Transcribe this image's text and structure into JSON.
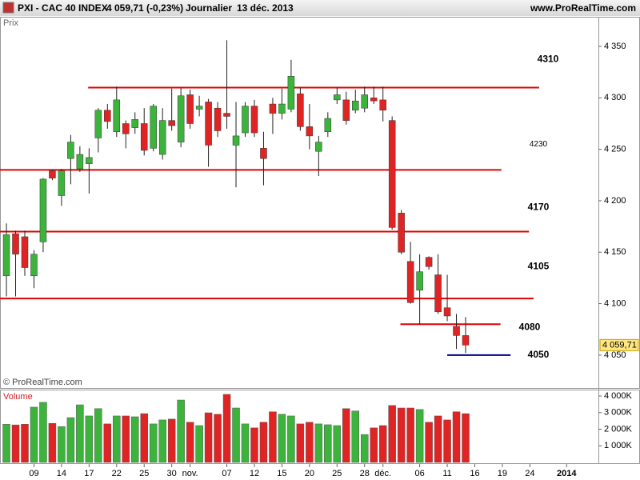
{
  "header": {
    "symbol": "PXI - CAC 40 INDEX",
    "quote": "4 059,71 (-0,23%)",
    "period": "Journalier",
    "date": "13 déc. 2013",
    "site": "www.ProRealTime.com"
  },
  "chart_data": [
    {
      "type": "candlestick",
      "title": "Prix",
      "source": "© ProRealTime.com",
      "up_color": "#3cb43c",
      "down_color": "#e02424",
      "xlim": [
        -0.7,
        64.46
      ],
      "xticks": [
        {
          "value": 3,
          "label": "09"
        },
        {
          "value": 6,
          "label": "14"
        },
        {
          "value": 9,
          "label": "17"
        },
        {
          "value": 12,
          "label": "22"
        },
        {
          "value": 15,
          "label": "25"
        },
        {
          "value": 18,
          "label": "30"
        },
        {
          "value": 20,
          "label": "nov."
        },
        {
          "value": 24,
          "label": "07"
        },
        {
          "value": 27,
          "label": "12"
        },
        {
          "value": 30,
          "label": "15"
        },
        {
          "value": 33,
          "label": "20"
        },
        {
          "value": 36,
          "label": "25"
        },
        {
          "value": 39,
          "label": "28"
        },
        {
          "value": 41,
          "label": "déc."
        },
        {
          "value": 45,
          "label": "06"
        },
        {
          "value": 48,
          "label": "11"
        },
        {
          "value": 51,
          "label": "16"
        },
        {
          "value": 54,
          "label": "19"
        },
        {
          "value": 57,
          "label": "24"
        },
        {
          "value": 61,
          "label": "2014"
        }
      ],
      "ylim": [
        4018,
        4378
      ],
      "yticks": [
        {
          "value": 4050,
          "label": "4 050"
        },
        {
          "value": 4100,
          "label": "4 100"
        },
        {
          "value": 4150,
          "label": "4 150"
        },
        {
          "value": 4200,
          "label": "4 200"
        },
        {
          "value": 4250,
          "label": "4 250"
        },
        {
          "value": 4300,
          "label": "4 300"
        },
        {
          "value": 4350,
          "label": "4 350"
        }
      ],
      "open": [
        4127,
        4168,
        4165,
        4127,
        4160,
        4229,
        4205,
        4241,
        4231,
        4236,
        4261,
        4288,
        4267,
        4275,
        4271,
        4275,
        4251,
        4245,
        4278,
        4257,
        4303,
        4289,
        4296,
        4290,
        4285,
        4254,
        4266,
        4292,
        4251,
        4294,
        4285,
        4289,
        4304,
        4272,
        4248,
        4267,
        4298,
        4298,
        4288,
        4290,
        4300,
        4298,
        4278,
        4188,
        4141,
        4113,
        4145,
        4128,
        4096,
        4078,
        4069
      ],
      "high": [
        4178,
        4171,
        4171,
        4152,
        4222,
        4230,
        4231,
        4264,
        4253,
        4251,
        4290,
        4294,
        4311,
        4278,
        4286,
        4290,
        4294,
        4290,
        4309,
        4310,
        4308,
        4302,
        4299,
        4296,
        4356,
        4296,
        4296,
        4298,
        4267,
        4300,
        4309,
        4337,
        4310,
        4294,
        4263,
        4286,
        4310,
        4306,
        4308,
        4311,
        4311,
        4311,
        4282,
        4191,
        4160,
        4148,
        4146,
        4148,
        4128,
        4090,
        4087
      ],
      "low": [
        4107,
        4107,
        4127,
        4115,
        4150,
        4220,
        4195,
        4216,
        4228,
        4207,
        4247,
        4270,
        4262,
        4251,
        4265,
        4244,
        4248,
        4240,
        4268,
        4252,
        4270,
        4282,
        4233,
        4262,
        4270,
        4213,
        4262,
        4262,
        4215,
        4265,
        4279,
        4286,
        4268,
        4250,
        4224,
        4262,
        4294,
        4274,
        4285,
        4286,
        4294,
        4277,
        4172,
        4148,
        4100,
        4080,
        4133,
        4090,
        4083,
        4056,
        4052
      ],
      "close": [
        4167,
        4148,
        4135,
        4148,
        4221,
        4222,
        4229,
        4257,
        4245,
        4242,
        4288,
        4277,
        4298,
        4265,
        4279,
        4249,
        4292,
        4278,
        4273,
        4302,
        4275,
        4292,
        4254,
        4268,
        4282,
        4263,
        4292,
        4266,
        4241,
        4285,
        4294,
        4321,
        4272,
        4263,
        4257,
        4280,
        4303,
        4278,
        4297,
        4303,
        4297,
        4288,
        4174,
        4150,
        4101,
        4131,
        4136,
        4092,
        4088,
        4069,
        4059.71
      ],
      "last_price": {
        "value": 4059.71,
        "label": "4 059,71"
      },
      "levels": [
        4310,
        4230,
        4170,
        4105,
        4080,
        4050
      ],
      "level_colors": [
        "#e00000",
        "#e00000",
        "#e00000",
        "#e00000",
        "#e00000",
        "#00008b"
      ]
    },
    {
      "type": "bar",
      "title": "Volume",
      "ylim": [
        0,
        4340
      ],
      "yticks": [
        {
          "value": 1000,
          "label": "1 000K"
        },
        {
          "value": 2000,
          "label": "2 000K"
        },
        {
          "value": 3000,
          "label": "3 000K"
        },
        {
          "value": 4000,
          "label": "4 000K"
        }
      ],
      "values": [
        2300,
        2260,
        2300,
        3330,
        3620,
        2350,
        2160,
        2700,
        3470,
        2800,
        3240,
        2320,
        2800,
        2800,
        2750,
        2940,
        2320,
        2560,
        2610,
        3760,
        2420,
        2220,
        2990,
        2900,
        4100,
        3280,
        2320,
        2080,
        2420,
        3050,
        2900,
        2800,
        2320,
        2420,
        2320,
        2270,
        2220,
        3240,
        3100,
        1680,
        2080,
        2220,
        3430,
        3280,
        3280,
        3190,
        2420,
        2800,
        2560,
        3050,
        2940
      ]
    }
  ]
}
